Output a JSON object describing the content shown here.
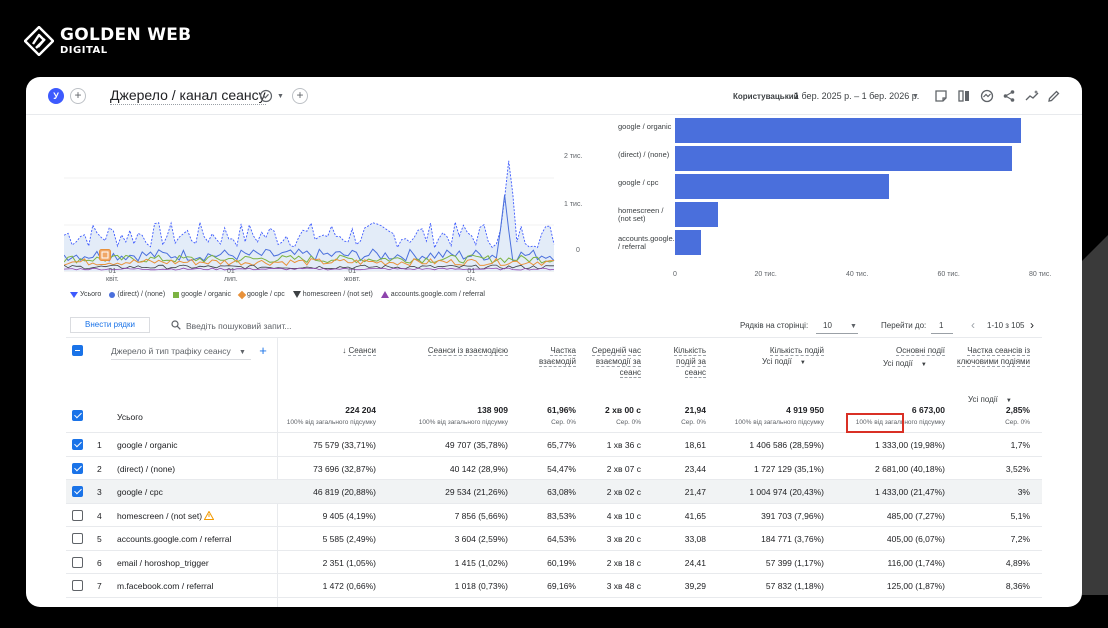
{
  "brand": {
    "name": "GOLDEN WEB",
    "sub": "DIGITAL"
  },
  "header": {
    "avatar_letter": "У",
    "title": "Джерело / канал сеансу",
    "range_label": "Користувацький",
    "date_range": "1 бер. 2025 р. – 1 бер. 2026 р."
  },
  "line_chart": {
    "y_ticks": [
      "2 тис.",
      "1 тис.",
      "0"
    ],
    "x_ticks": [
      [
        "01",
        "квіт."
      ],
      [
        "01",
        "лип."
      ],
      [
        "01",
        "жовт."
      ],
      [
        "01",
        "січ."
      ]
    ],
    "legend": [
      {
        "label": "Усього",
        "color": "#3d5afe"
      },
      {
        "label": "(direct) / (none)",
        "color": "#4a6fdc"
      },
      {
        "label": "google / organic",
        "color": "#7cb342"
      },
      {
        "label": "google / cpc",
        "color": "#e8913a"
      },
      {
        "label": "homescreen / (not set)",
        "color": "#3c4043"
      },
      {
        "label": "accounts.google.com / referral",
        "color": "#8e44ad"
      }
    ]
  },
  "chart_data": {
    "type": "bar",
    "categories": [
      "google / organic",
      "(direct) / (none)",
      "google / cpc",
      "homescreen / (not set)",
      "accounts.google.com / referral"
    ],
    "values": [
      75579,
      73696,
      46819,
      9405,
      5585
    ],
    "x_ticks": [
      "0",
      "20 тис.",
      "40 тис.",
      "60 тис.",
      "80 тис."
    ],
    "xlim": [
      0,
      80000
    ],
    "color": "#4a6fdc"
  },
  "toolbar": {
    "add_rows": "Внести рядки",
    "search_placeholder": "Введіть пошуковий запит...",
    "rows_per_page_label": "Рядків на сторінці:",
    "rows_per_page": "10",
    "goto_label": "Перейти до:",
    "goto_value": "1",
    "pagination": "1-10 з 105"
  },
  "table": {
    "dimension_label": "Джерело й тип трафіку сеансу",
    "total_label": "Усього",
    "columns": [
      {
        "title": "Сеанси",
        "total": "224 204",
        "sub": "100% від загального підсумку"
      },
      {
        "title": "Сеанси із взаємодією",
        "total": "138 909",
        "sub": "100% від загального підсумку"
      },
      {
        "title": "Частка взаємодій",
        "total": "61,96%",
        "sub": "Сер. 0%"
      },
      {
        "title": "Середній час взаємодії за сеанс",
        "total": "2 хв 00 с",
        "sub": "Сер. 0%"
      },
      {
        "title": "Кількість подій за сеанс",
        "total": "21,94",
        "sub": "Сер. 0%"
      },
      {
        "title": "Кількість подій",
        "filter": "Усі події",
        "total": "4 919 950",
        "sub": "100% від загального підсумку"
      },
      {
        "title": "Основні події",
        "filter": "Усі події",
        "total": "6 673,00",
        "sub": "100% від загального підсумку"
      },
      {
        "title": "Частка сеансів із ключовими подіями",
        "filter": "Усі події",
        "total": "2,85%",
        "sub": "Сер. 0%"
      }
    ],
    "rows": [
      {
        "n": "1",
        "dim": "google / organic",
        "checked": true,
        "warn": false,
        "v": [
          "75 579 (33,71%)",
          "49 707 (35,78%)",
          "65,77%",
          "1 хв 36 с",
          "18,61",
          "1 406 586 (28,59%)",
          "1 333,00 (19,98%)",
          "1,7%"
        ]
      },
      {
        "n": "2",
        "dim": "(direct) / (none)",
        "checked": true,
        "warn": false,
        "v": [
          "73 696 (32,87%)",
          "40 142 (28,9%)",
          "54,47%",
          "2 хв 07 с",
          "23,44",
          "1 727 129 (35,1%)",
          "2 681,00 (40,18%)",
          "3,52%"
        ]
      },
      {
        "n": "3",
        "dim": "google / cpc",
        "checked": true,
        "warn": false,
        "v": [
          "46 819 (20,88%)",
          "29 534 (21,26%)",
          "63,08%",
          "2 хв 02 с",
          "21,47",
          "1 004 974 (20,43%)",
          "1 433,00 (21,47%)",
          "3%"
        ]
      },
      {
        "n": "4",
        "dim": "homescreen / (not set)",
        "checked": false,
        "warn": true,
        "v": [
          "9 405 (4,19%)",
          "7 856 (5,66%)",
          "83,53%",
          "4 хв 10 с",
          "41,65",
          "391 703 (7,96%)",
          "485,00 (7,27%)",
          "5,1%"
        ]
      },
      {
        "n": "5",
        "dim": "accounts.google.com / referral",
        "checked": false,
        "warn": false,
        "v": [
          "5 585 (2,49%)",
          "3 604 (2,59%)",
          "64,53%",
          "3 хв 20 с",
          "33,08",
          "184 771 (3,76%)",
          "405,00 (6,07%)",
          "7,2%"
        ]
      },
      {
        "n": "6",
        "dim": "email / horoshop_trigger",
        "checked": false,
        "warn": false,
        "v": [
          "2 351 (1,05%)",
          "1 415 (1,02%)",
          "60,19%",
          "2 хв 18 с",
          "24,41",
          "57 399 (1,17%)",
          "116,00 (1,74%)",
          "4,89%"
        ]
      },
      {
        "n": "7",
        "dim": "m.facebook.com / referral",
        "checked": false,
        "warn": false,
        "v": [
          "1 472 (0,66%)",
          "1 018 (0,73%)",
          "69,16%",
          "3 хв 48 с",
          "39,29",
          "57 832 (1,18%)",
          "125,00 (1,87%)",
          "8,36%"
        ]
      }
    ]
  }
}
